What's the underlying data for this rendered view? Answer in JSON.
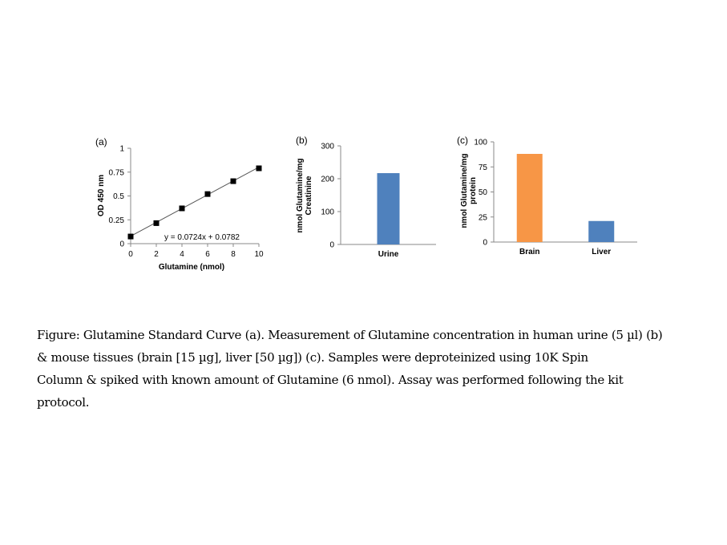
{
  "chart_data": [
    {
      "type": "scatter",
      "panel_label": "(a)",
      "xlabel": "Glutamine (nmol)",
      "ylabel": "OD 450 nm",
      "xlim": [
        0,
        10
      ],
      "ylim": [
        0,
        1
      ],
      "x_ticks": [
        "0",
        "2",
        "4",
        "6",
        "8",
        "10"
      ],
      "y_ticks": [
        "0",
        "0.25",
        "0.5",
        "0.75",
        "1"
      ],
      "x": [
        0,
        2,
        4,
        6,
        8,
        10
      ],
      "y": [
        0.075,
        0.215,
        0.37,
        0.52,
        0.655,
        0.79
      ],
      "trendline": {
        "slope": 0.0724,
        "intercept": 0.0782
      },
      "annotation": "y = 0.0724x + 0.0782",
      "grid": false
    },
    {
      "type": "bar",
      "panel_label": "(b)",
      "categories": [
        "Urine"
      ],
      "values": [
        217
      ],
      "ylabel_lines": [
        "nmol Glutamine/mg",
        "Creatinine"
      ],
      "ylim": [
        0,
        300
      ],
      "y_ticks": [
        "0",
        "100",
        "200",
        "300"
      ],
      "colors": [
        "#4f81bd"
      ],
      "grid": false
    },
    {
      "type": "bar",
      "panel_label": "(c)",
      "categories": [
        "Brain",
        "Liver"
      ],
      "values": [
        88,
        21
      ],
      "ylabel_lines": [
        "nmol Glutamine/mg",
        "protein"
      ],
      "ylim": [
        0,
        100
      ],
      "y_ticks": [
        "0",
        "25",
        "50",
        "75",
        "100"
      ],
      "colors": [
        "#f79646",
        "#4f81bd"
      ],
      "grid": false
    }
  ],
  "caption": {
    "line1": "Figure: Glutamine Standard Curve (a). Measurement of Glutamine concentration in human urine (5 µl) (b)",
    "line2": "& mouse tissues (brain [15 µg],  liver [50 µg]) (c). Samples were deproteinized using 10K Spin",
    "line3": "Column & spiked with known amount of Glutamine (6 nmol). Assay was performed following the kit",
    "line4": "protocol."
  }
}
